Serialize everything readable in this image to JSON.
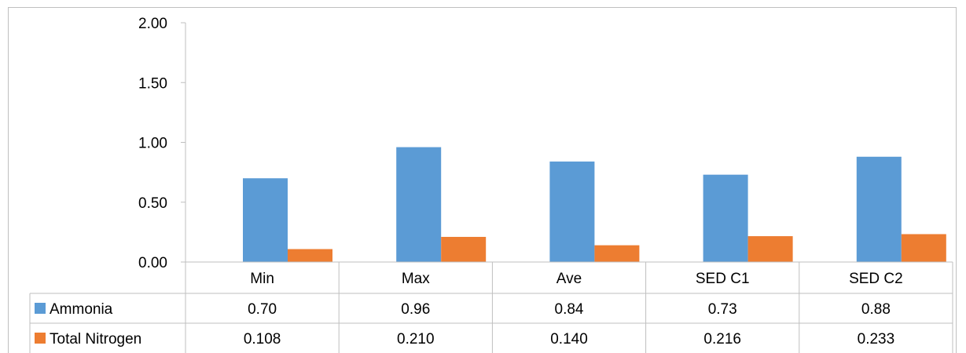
{
  "chart_data": {
    "type": "bar",
    "categories": [
      "Min",
      "Max",
      "Ave",
      "SED C1",
      "SED C2"
    ],
    "series": [
      {
        "name": "Ammonia",
        "color": "#5b9bd5",
        "values": [
          0.7,
          0.96,
          0.84,
          0.73,
          0.88
        ],
        "table_values": [
          "0.70",
          "0.96",
          "0.84",
          "0.73",
          "0.88"
        ]
      },
      {
        "name": "Total Nitrogen",
        "color": "#ed7d31",
        "values": [
          0.108,
          0.21,
          0.14,
          0.216,
          0.233
        ],
        "table_values": [
          "0.108",
          "0.210",
          "0.140",
          "0.216",
          "0.233"
        ]
      }
    ],
    "y_ticks": [
      "0.00",
      "0.50",
      "1.00",
      "1.50",
      "2.00"
    ],
    "ylim": [
      0,
      2
    ],
    "grid": false,
    "legend": "data-table"
  }
}
